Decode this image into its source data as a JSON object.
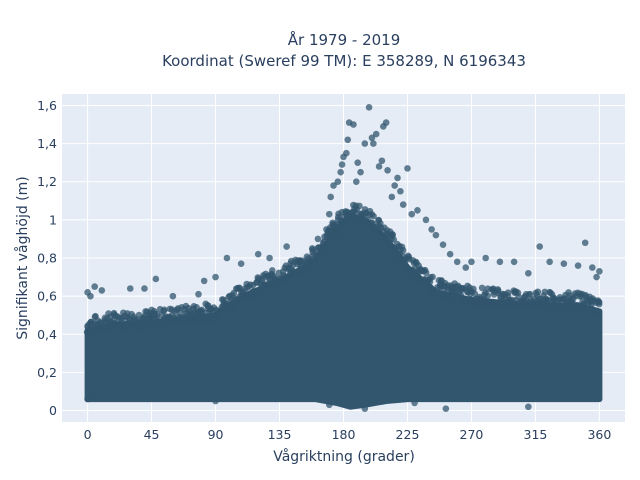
{
  "chart_data": {
    "type": "scatter",
    "title_line1": "År 1979 - 2019",
    "title_line2": "Koordinat (Sweref 99 TM): E 358289, N 6196343",
    "xlabel": "Vågriktning (grader)",
    "ylabel": "Signifikant våghöjd (m)",
    "xlim": [
      -18,
      378
    ],
    "ylim": [
      -0.06,
      1.66
    ],
    "xticks": [
      0,
      45,
      90,
      135,
      180,
      225,
      270,
      315,
      360
    ],
    "xtick_labels": [
      "0",
      "45",
      "90",
      "135",
      "180",
      "225",
      "270",
      "315",
      "360"
    ],
    "yticks": [
      0,
      0.2,
      0.4,
      0.6,
      0.8,
      1.0,
      1.2,
      1.4,
      1.6
    ],
    "ytick_labels": [
      "0",
      "0,2",
      "0,4",
      "0,6",
      "0,8",
      "1",
      "1,2",
      "1,4",
      "1,6"
    ],
    "grid": true,
    "colors": {
      "marker": "#31566e",
      "plot_background": "#e5ecf6",
      "grid": "#ffffff",
      "text": "#2a3f5f"
    },
    "envelope": {
      "direction": [
        0,
        20,
        45,
        90,
        110,
        135,
        160,
        175,
        185,
        195,
        210,
        225,
        245,
        270,
        300,
        330,
        345,
        360
      ],
      "min_height": [
        0.06,
        0.06,
        0.06,
        0.06,
        0.06,
        0.06,
        0.06,
        0.04,
        0.02,
        0.03,
        0.05,
        0.06,
        0.06,
        0.06,
        0.06,
        0.06,
        0.06,
        0.06
      ],
      "dense_upper": [
        0.42,
        0.45,
        0.46,
        0.5,
        0.6,
        0.68,
        0.78,
        0.95,
        1.02,
        1.0,
        0.9,
        0.75,
        0.62,
        0.58,
        0.56,
        0.55,
        0.55,
        0.52
      ]
    },
    "points": [
      {
        "x": 0,
        "y": 0.62
      },
      {
        "x": 2,
        "y": 0.6
      },
      {
        "x": 5,
        "y": 0.65
      },
      {
        "x": 10,
        "y": 0.63
      },
      {
        "x": 30,
        "y": 0.64
      },
      {
        "x": 40,
        "y": 0.64
      },
      {
        "x": 48,
        "y": 0.69
      },
      {
        "x": 60,
        "y": 0.6
      },
      {
        "x": 78,
        "y": 0.61
      },
      {
        "x": 82,
        "y": 0.68
      },
      {
        "x": 90,
        "y": 0.7
      },
      {
        "x": 98,
        "y": 0.8
      },
      {
        "x": 108,
        "y": 0.77
      },
      {
        "x": 120,
        "y": 0.82
      },
      {
        "x": 128,
        "y": 0.8
      },
      {
        "x": 140,
        "y": 0.86
      },
      {
        "x": 150,
        "y": 0.76
      },
      {
        "x": 158,
        "y": 0.85
      },
      {
        "x": 162,
        "y": 0.9
      },
      {
        "x": 168,
        "y": 0.95
      },
      {
        "x": 170,
        "y": 1.03
      },
      {
        "x": 171,
        "y": 1.12
      },
      {
        "x": 173,
        "y": 1.18
      },
      {
        "x": 176,
        "y": 1.2
      },
      {
        "x": 178,
        "y": 1.25
      },
      {
        "x": 179,
        "y": 1.29
      },
      {
        "x": 180,
        "y": 1.33
      },
      {
        "x": 182,
        "y": 1.35
      },
      {
        "x": 183,
        "y": 1.42
      },
      {
        "x": 184,
        "y": 1.51
      },
      {
        "x": 187,
        "y": 1.5
      },
      {
        "x": 189,
        "y": 1.2
      },
      {
        "x": 190,
        "y": 1.3
      },
      {
        "x": 192,
        "y": 1.25
      },
      {
        "x": 195,
        "y": 1.4
      },
      {
        "x": 198,
        "y": 1.59
      },
      {
        "x": 200,
        "y": 1.43
      },
      {
        "x": 201,
        "y": 1.4
      },
      {
        "x": 203,
        "y": 1.45
      },
      {
        "x": 205,
        "y": 1.28
      },
      {
        "x": 207,
        "y": 1.31
      },
      {
        "x": 208,
        "y": 1.49
      },
      {
        "x": 210,
        "y": 1.51
      },
      {
        "x": 211,
        "y": 1.26
      },
      {
        "x": 214,
        "y": 1.12
      },
      {
        "x": 216,
        "y": 1.18
      },
      {
        "x": 218,
        "y": 1.22
      },
      {
        "x": 220,
        "y": 1.15
      },
      {
        "x": 222,
        "y": 1.08
      },
      {
        "x": 225,
        "y": 1.27
      },
      {
        "x": 228,
        "y": 1.03
      },
      {
        "x": 232,
        "y": 1.05
      },
      {
        "x": 238,
        "y": 1.0
      },
      {
        "x": 242,
        "y": 0.95
      },
      {
        "x": 245,
        "y": 0.92
      },
      {
        "x": 250,
        "y": 0.87
      },
      {
        "x": 255,
        "y": 0.82
      },
      {
        "x": 260,
        "y": 0.78
      },
      {
        "x": 266,
        "y": 0.75
      },
      {
        "x": 270,
        "y": 0.78
      },
      {
        "x": 280,
        "y": 0.8
      },
      {
        "x": 290,
        "y": 0.78
      },
      {
        "x": 300,
        "y": 0.78
      },
      {
        "x": 310,
        "y": 0.72
      },
      {
        "x": 318,
        "y": 0.86
      },
      {
        "x": 325,
        "y": 0.78
      },
      {
        "x": 335,
        "y": 0.77
      },
      {
        "x": 345,
        "y": 0.76
      },
      {
        "x": 350,
        "y": 0.88
      },
      {
        "x": 355,
        "y": 0.75
      },
      {
        "x": 360,
        "y": 0.73
      },
      {
        "x": 358,
        "y": 0.7
      },
      {
        "x": 252,
        "y": 0.01
      },
      {
        "x": 310,
        "y": 0.02
      },
      {
        "x": 195,
        "y": 0.01
      },
      {
        "x": 230,
        "y": 0.04
      },
      {
        "x": 0,
        "y": 0.06
      },
      {
        "x": 90,
        "y": 0.05
      },
      {
        "x": 170,
        "y": 0.03
      }
    ]
  }
}
